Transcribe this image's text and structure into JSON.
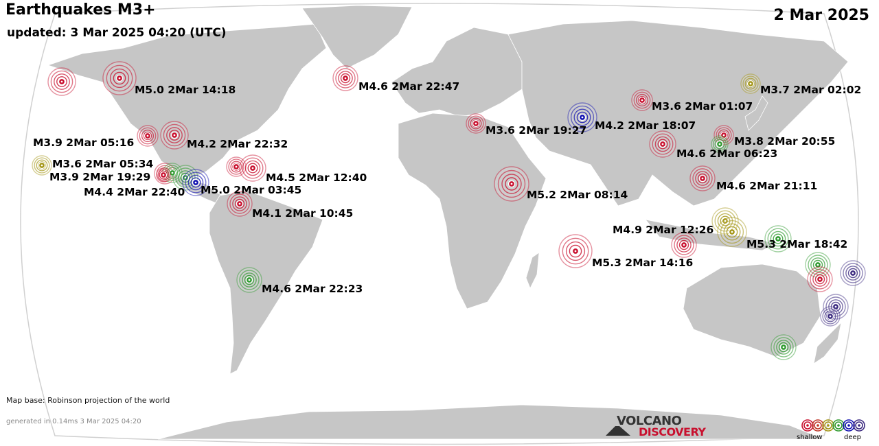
{
  "header": {
    "title": "Earthquakes M3+",
    "updated": "updated:  3 Mar 2025 04:20 (UTC)",
    "date": "2 Mar 2025"
  },
  "footer": {
    "map_base": "Map base: Robinson projection of the world",
    "generated": "generated in 0.14ms  3 Mar 2025 04:20"
  },
  "logo": {
    "line1": "VOLCANO",
    "line2": "DISCOVERY"
  },
  "legend": {
    "shallow_label": "shallow",
    "deep_label": "deep",
    "depth_colors": [
      "#c8102e",
      "#c0392b",
      "#a39515",
      "#2e9a2e",
      "#1010b0",
      "#3c2a80"
    ]
  },
  "colors": {
    "land": "#c6c6c6",
    "ocean": "#ffffff",
    "border": "#ffffff",
    "red": "#c8102e",
    "olive": "#a39515",
    "green": "#2e9a2e",
    "blue": "#1010b0",
    "purple": "#3c2a80"
  },
  "quakes": [
    {
      "label": "",
      "depth": "red"
    },
    {
      "label": "M5.0  2Mar 14:18",
      "depth": "red"
    },
    {
      "label": "M4.6  2Mar 22:47",
      "depth": "red"
    },
    {
      "label": "M3.7  2Mar 02:02",
      "depth": "olive"
    },
    {
      "label": "M3.6  2Mar 01:07",
      "depth": "red"
    },
    {
      "label": "M4.2  2Mar 18:07",
      "depth": "blue"
    },
    {
      "label": "M3.6  2Mar 19:27",
      "depth": "red"
    },
    {
      "label": "M3.8  2Mar 20:55",
      "depth": "red"
    },
    {
      "label": "",
      "depth": "green"
    },
    {
      "label": "M4.6  2Mar 06:23",
      "depth": "red"
    },
    {
      "label": "M3.9  2Mar 05:16",
      "depth": "red"
    },
    {
      "label": "M4.2  2Mar 22:32",
      "depth": "red"
    },
    {
      "label": "M3.6  2Mar 05:34",
      "depth": "olive"
    },
    {
      "label": "M3.9  2Mar 19:29",
      "depth": "red"
    },
    {
      "label": "",
      "depth": "green"
    },
    {
      "label": "",
      "depth": "green"
    },
    {
      "label": "M5.0  2Mar 03:45",
      "depth": "blue"
    },
    {
      "label": "M4.4  2Mar 22:40",
      "depth": "red"
    },
    {
      "label": "",
      "depth": "red"
    },
    {
      "label": "M4.5  2Mar 12:40",
      "depth": "red"
    },
    {
      "label": "M4.1  2Mar 10:45",
      "depth": "red"
    },
    {
      "label": "M5.2  2Mar 08:14",
      "depth": "red"
    },
    {
      "label": "M4.6  2Mar 21:11",
      "depth": "red"
    },
    {
      "label": "M4.9  2Mar 12:26",
      "depth": "olive"
    },
    {
      "label": "",
      "depth": "olive"
    },
    {
      "label": "M5.3  2Mar 18:42",
      "depth": "green"
    },
    {
      "label": "",
      "depth": "red"
    },
    {
      "label": "M5.3  2Mar 14:16",
      "depth": "red"
    },
    {
      "label": "M4.6  2Mar 22:23",
      "depth": "green"
    },
    {
      "label": "",
      "depth": "green"
    },
    {
      "label": "",
      "depth": "red"
    },
    {
      "label": "",
      "depth": "purple"
    },
    {
      "label": "",
      "depth": "purple"
    },
    {
      "label": "",
      "depth": "purple"
    },
    {
      "label": "",
      "depth": "green"
    }
  ]
}
